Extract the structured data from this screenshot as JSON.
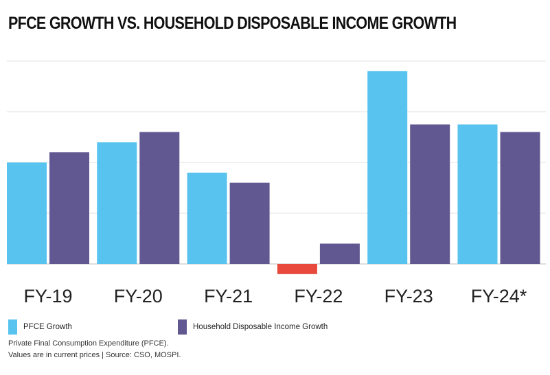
{
  "title": "PFCE GROWTH VS. HOUSEHOLD DISPOSABLE INCOME  GROWTH",
  "chart_data": {
    "type": "bar",
    "categories": [
      "FY-19",
      "FY-20",
      "FY-21",
      "FY-22",
      "FY-23",
      "FY-24*"
    ],
    "series": [
      {
        "name": "PFCE Growth",
        "color": "#57c3ee",
        "values": [
          8.0,
          9.6,
          7.2,
          -0.8,
          15.2,
          11.0
        ]
      },
      {
        "name": "Household Disposable Income Growth",
        "color": "#625891",
        "values": [
          8.8,
          10.4,
          6.4,
          1.6,
          11.0,
          10.4
        ]
      }
    ],
    "negative_color": "#e8493c",
    "ylim": [
      -1,
      16
    ],
    "gridlines": [
      0,
      4,
      8,
      12,
      16
    ],
    "grid": true,
    "y_tick_labels_shown": false,
    "legend_position": "bottom-left"
  },
  "footnotes": [
    "Private Final Consumption Expenditure (PFCE).",
    "Values are in current prices | Source: CSO, MOSPI."
  ]
}
